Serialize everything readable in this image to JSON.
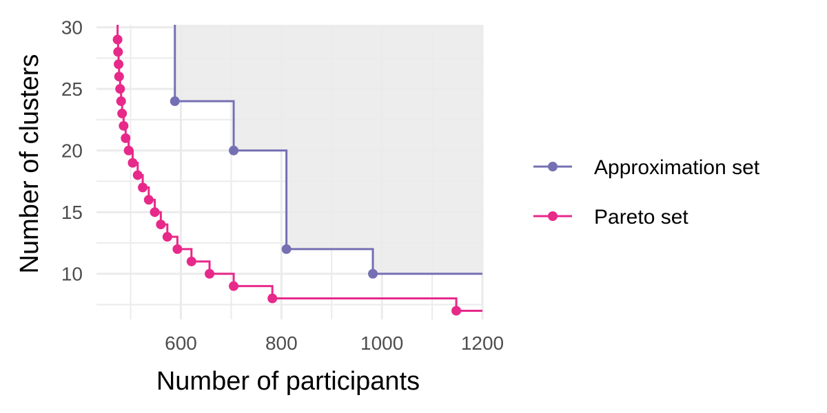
{
  "chart_data": {
    "type": "line",
    "xlabel": "Number of participants",
    "ylabel": "Number of clusters",
    "xlim": [
      432,
      1200
    ],
    "ylim": [
      6.3,
      30.2
    ],
    "x_ticks": [
      600,
      800,
      1000,
      1200
    ],
    "y_ticks": [
      10,
      15,
      20,
      25,
      30
    ],
    "grid": true,
    "legend_position": "right",
    "dominated_region": {
      "fill": "#ebebeb",
      "bounded_by": "Approximation set"
    },
    "series": [
      {
        "name": "Approximation set",
        "color": "#7570b3",
        "step": true,
        "points": [
          {
            "x": 588,
            "y": 24
          },
          {
            "x": 705,
            "y": 20
          },
          {
            "x": 810,
            "y": 12
          },
          {
            "x": 982,
            "y": 10
          }
        ]
      },
      {
        "name": "Pareto set",
        "color": "#e7298a",
        "step": true,
        "points": [
          {
            "x": 474,
            "y": 29
          },
          {
            "x": 475,
            "y": 28
          },
          {
            "x": 476,
            "y": 27
          },
          {
            "x": 477,
            "y": 26
          },
          {
            "x": 479,
            "y": 25
          },
          {
            "x": 481,
            "y": 24
          },
          {
            "x": 483,
            "y": 23
          },
          {
            "x": 486,
            "y": 22
          },
          {
            "x": 490,
            "y": 21
          },
          {
            "x": 496,
            "y": 20
          },
          {
            "x": 504,
            "y": 19
          },
          {
            "x": 514,
            "y": 18
          },
          {
            "x": 524,
            "y": 17
          },
          {
            "x": 536,
            "y": 16
          },
          {
            "x": 548,
            "y": 15
          },
          {
            "x": 560,
            "y": 14
          },
          {
            "x": 573,
            "y": 13
          },
          {
            "x": 593,
            "y": 12
          },
          {
            "x": 621,
            "y": 11
          },
          {
            "x": 657,
            "y": 10
          },
          {
            "x": 705,
            "y": 9
          },
          {
            "x": 782,
            "y": 8
          },
          {
            "x": 1148,
            "y": 7
          }
        ]
      }
    ]
  }
}
